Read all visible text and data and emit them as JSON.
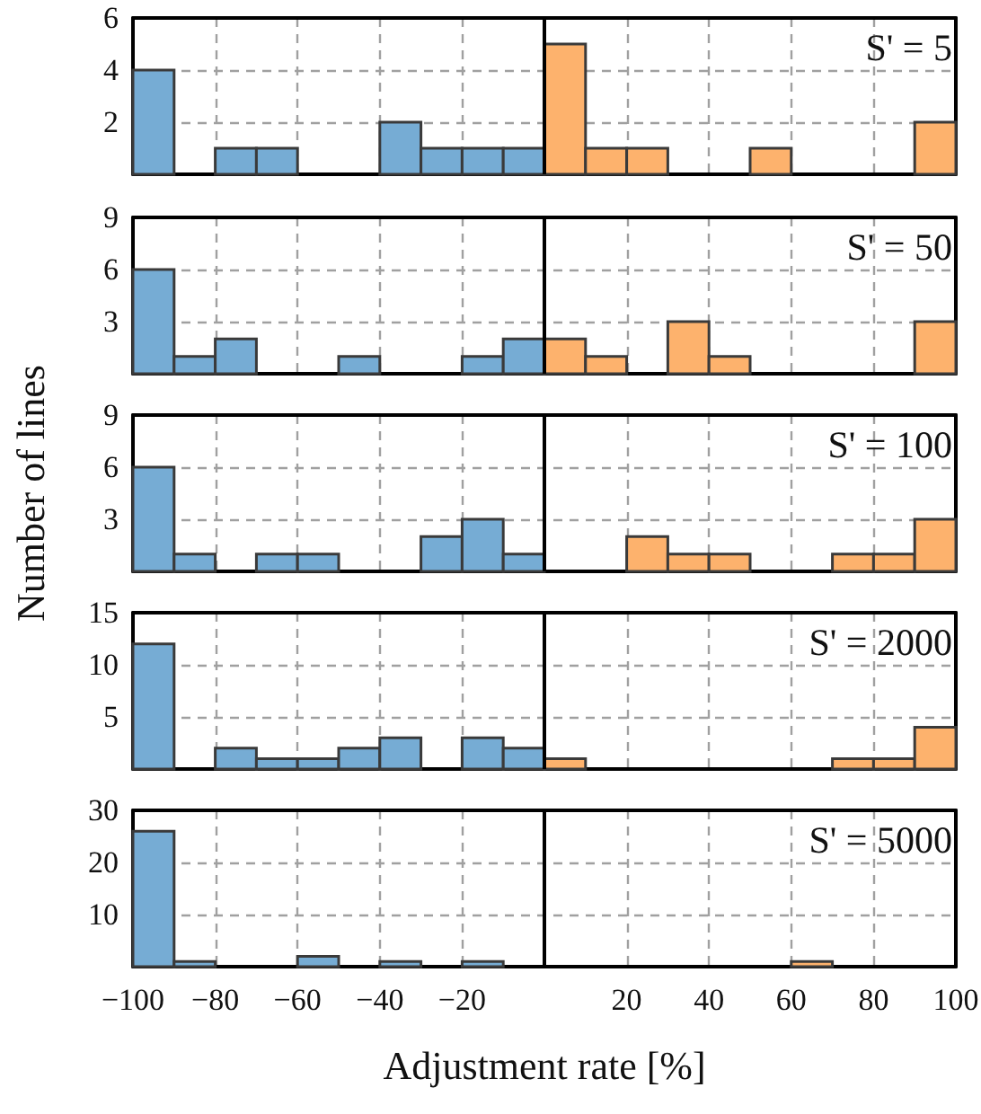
{
  "chart_data": [
    {
      "type": "histogram",
      "annotations": [
        "S' = 5"
      ],
      "xlim": [
        -100,
        100
      ],
      "ylim": [
        0,
        6
      ],
      "yticks": [
        2,
        4,
        6
      ],
      "tick_labels": "y",
      "grid": true,
      "bins": [
        -100,
        -90,
        -80,
        -70,
        -60,
        -50,
        -40,
        -30,
        -20,
        -10,
        0,
        10,
        20,
        30,
        40,
        50,
        60,
        70,
        80,
        90,
        100
      ],
      "values": [
        4,
        0,
        1,
        1,
        0,
        0,
        2,
        1,
        1,
        1,
        5,
        1,
        1,
        0,
        0,
        1,
        0,
        0,
        0,
        2
      ],
      "ref_lines": [
        {
          "axis": "x",
          "value": 0,
          "color": "#000000",
          "line_style": "solid"
        }
      ],
      "colors": [
        "#76acd4",
        "#76acd4",
        "#76acd4",
        "#76acd4",
        "#76acd4",
        "#76acd4",
        "#76acd4",
        "#76acd4",
        "#76acd4",
        "#76acd4",
        "#fdb26d",
        "#fdb26d",
        "#fdb26d",
        "#fdb26d",
        "#fdb26d",
        "#fdb26d",
        "#fdb26d",
        "#fdb26d",
        "#fdb26d",
        "#fdb26d"
      ]
    },
    {
      "type": "histogram",
      "annotations": [
        "S' = 50"
      ],
      "xlim": [
        -100,
        100
      ],
      "ylim": [
        0,
        9
      ],
      "yticks": [
        3,
        6,
        9
      ],
      "tick_labels": "y",
      "grid": true,
      "bins": [
        -100,
        -90,
        -80,
        -70,
        -60,
        -50,
        -40,
        -30,
        -20,
        -10,
        0,
        10,
        20,
        30,
        40,
        50,
        60,
        70,
        80,
        90,
        100
      ],
      "values": [
        6,
        1,
        2,
        0,
        0,
        1,
        0,
        0,
        1,
        2,
        2,
        1,
        0,
        3,
        1,
        0,
        0,
        0,
        0,
        3
      ],
      "ref_lines": [
        {
          "axis": "x",
          "value": 0,
          "color": "#000000",
          "line_style": "solid"
        }
      ],
      "colors": [
        "#76acd4",
        "#76acd4",
        "#76acd4",
        "#76acd4",
        "#76acd4",
        "#76acd4",
        "#76acd4",
        "#76acd4",
        "#76acd4",
        "#76acd4",
        "#fdb26d",
        "#fdb26d",
        "#fdb26d",
        "#fdb26d",
        "#fdb26d",
        "#fdb26d",
        "#fdb26d",
        "#fdb26d",
        "#fdb26d",
        "#fdb26d"
      ]
    },
    {
      "type": "histogram",
      "annotations": [
        "S' = 100"
      ],
      "ylabel": "Number of lines",
      "xlim": [
        -100,
        100
      ],
      "ylim": [
        0,
        9
      ],
      "yticks": [
        3,
        6,
        9
      ],
      "tick_labels": "y",
      "grid": true,
      "bins": [
        -100,
        -90,
        -80,
        -70,
        -60,
        -50,
        -40,
        -30,
        -20,
        -10,
        0,
        10,
        20,
        30,
        40,
        50,
        60,
        70,
        80,
        90,
        100
      ],
      "values": [
        6,
        1,
        0,
        1,
        1,
        0,
        0,
        2,
        3,
        1,
        0,
        0,
        2,
        1,
        1,
        0,
        0,
        1,
        1,
        3
      ],
      "ref_lines": [
        {
          "axis": "x",
          "value": 0,
          "color": "#000000",
          "line_style": "solid"
        }
      ],
      "colors": [
        "#76acd4",
        "#76acd4",
        "#76acd4",
        "#76acd4",
        "#76acd4",
        "#76acd4",
        "#76acd4",
        "#76acd4",
        "#76acd4",
        "#76acd4",
        "#fdb26d",
        "#fdb26d",
        "#fdb26d",
        "#fdb26d",
        "#fdb26d",
        "#fdb26d",
        "#fdb26d",
        "#fdb26d",
        "#fdb26d",
        "#fdb26d"
      ]
    },
    {
      "type": "histogram",
      "annotations": [
        "S' = 2000"
      ],
      "xlim": [
        -100,
        100
      ],
      "ylim": [
        0,
        15
      ],
      "yticks": [
        5,
        10,
        15
      ],
      "tick_labels": "y",
      "grid": true,
      "bins": [
        -100,
        -90,
        -80,
        -70,
        -60,
        -50,
        -40,
        -30,
        -20,
        -10,
        0,
        10,
        20,
        30,
        40,
        50,
        60,
        70,
        80,
        90,
        100
      ],
      "values": [
        12,
        0,
        2,
        1,
        1,
        2,
        3,
        0,
        3,
        2,
        1,
        0,
        0,
        0,
        0,
        0,
        0,
        1,
        1,
        4
      ],
      "ref_lines": [
        {
          "axis": "x",
          "value": 0,
          "color": "#000000",
          "line_style": "solid"
        }
      ],
      "colors": [
        "#76acd4",
        "#76acd4",
        "#76acd4",
        "#76acd4",
        "#76acd4",
        "#76acd4",
        "#76acd4",
        "#76acd4",
        "#76acd4",
        "#76acd4",
        "#fdb26d",
        "#fdb26d",
        "#fdb26d",
        "#fdb26d",
        "#fdb26d",
        "#fdb26d",
        "#fdb26d",
        "#fdb26d",
        "#fdb26d",
        "#fdb26d"
      ]
    },
    {
      "type": "histogram",
      "annotations": [
        "S' = 5000"
      ],
      "xlabel": "Adjustment rate [%]",
      "xlim": [
        -100,
        100
      ],
      "xticks": [
        -100,
        -80,
        -60,
        -40,
        -20,
        20,
        40,
        60,
        80,
        100
      ],
      "ylim": [
        0,
        30
      ],
      "yticks": [
        10,
        20,
        30
      ],
      "grid": true,
      "bins": [
        -100,
        -90,
        -80,
        -70,
        -60,
        -50,
        -40,
        -30,
        -20,
        -10,
        0,
        10,
        20,
        30,
        40,
        50,
        60,
        70,
        80,
        90,
        100
      ],
      "values": [
        26,
        1,
        0,
        0,
        2,
        0,
        1,
        0,
        1,
        0,
        0,
        0,
        0,
        0,
        0,
        0,
        1,
        0,
        0,
        0
      ],
      "ref_lines": [
        {
          "axis": "x",
          "value": 0,
          "color": "#000000",
          "line_style": "solid"
        }
      ],
      "colors": [
        "#76acd4",
        "#76acd4",
        "#76acd4",
        "#76acd4",
        "#76acd4",
        "#76acd4",
        "#76acd4",
        "#76acd4",
        "#76acd4",
        "#76acd4",
        "#fdb26d",
        "#fdb26d",
        "#fdb26d",
        "#fdb26d",
        "#fdb26d",
        "#fdb26d",
        "#fdb26d",
        "#fdb26d",
        "#fdb26d",
        "#fdb26d"
      ]
    }
  ]
}
